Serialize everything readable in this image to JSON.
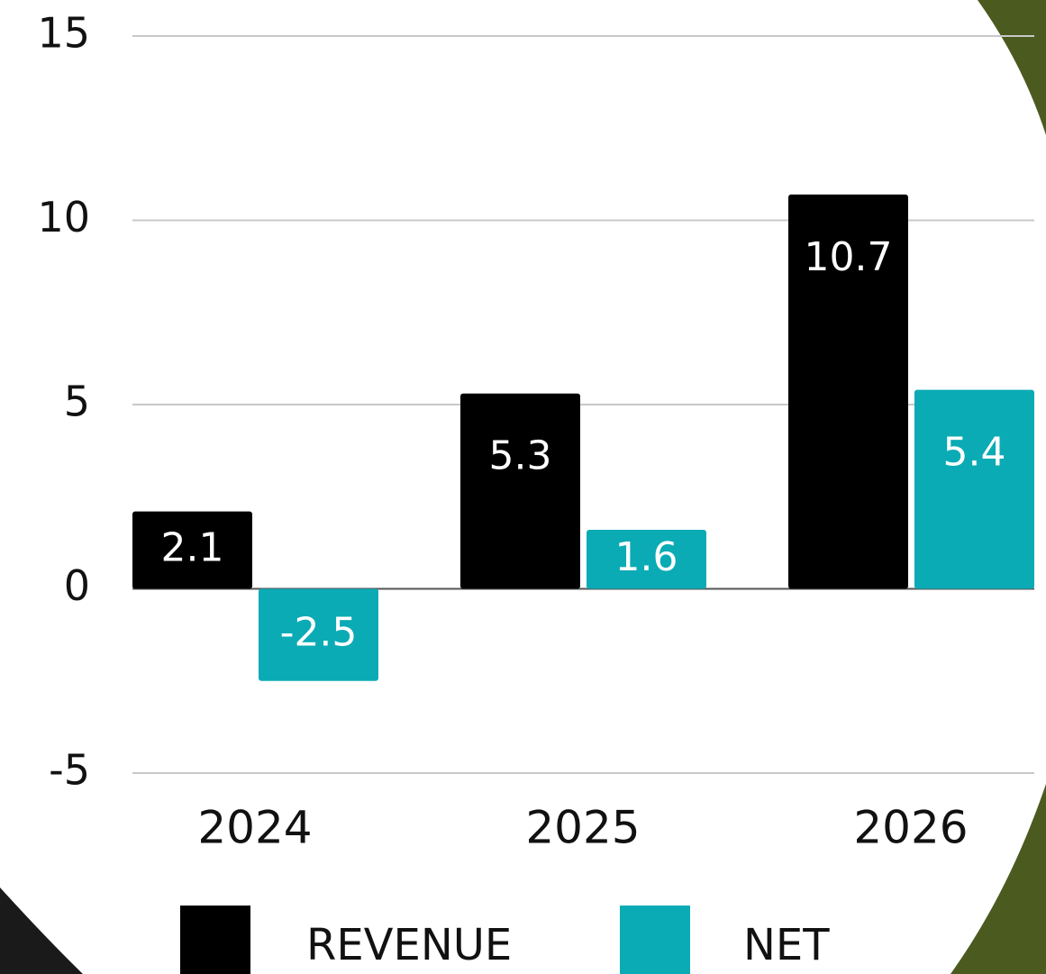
{
  "chart_data": {
    "type": "bar",
    "categories": [
      "2024",
      "2025",
      "2026"
    ],
    "series": [
      {
        "name": "REVENUE",
        "color": "#000000",
        "values": [
          2.1,
          5.3,
          10.7
        ]
      },
      {
        "name": "NET",
        "color": "#0aabb5",
        "values": [
          -2.5,
          1.6,
          5.4
        ]
      }
    ],
    "ylim": [
      -5,
      15
    ],
    "yticks": [
      -5,
      0,
      5,
      10,
      15
    ],
    "grid": true,
    "legend": "bottom"
  }
}
